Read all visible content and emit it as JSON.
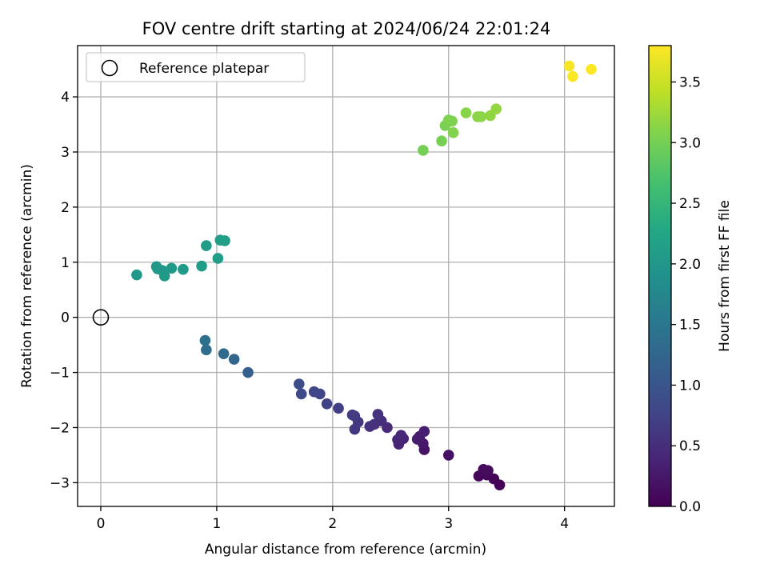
{
  "chart_data": {
    "type": "scatter",
    "title": "FOV centre drift starting at 2024/06/24 22:01:24",
    "xlabel": "Angular distance from reference (arcmin)",
    "ylabel": "Rotation from reference (arcmin)",
    "xlim": [
      -0.2,
      4.43
    ],
    "ylim": [
      -3.43,
      4.93
    ],
    "x_ticks": [
      0,
      1,
      2,
      3,
      4
    ],
    "x_tick_labels": [
      "0",
      "1",
      "2",
      "3",
      "4"
    ],
    "y_ticks": [
      -3,
      -2,
      -1,
      0,
      1,
      2,
      3,
      4
    ],
    "y_tick_labels": [
      "−3",
      "−2",
      "−1",
      "0",
      "1",
      "2",
      "3",
      "4"
    ],
    "grid": true,
    "legend": {
      "placement": "top-left",
      "entries": [
        "Reference platepar"
      ]
    },
    "reference_point": {
      "x": 0,
      "y": 0
    },
    "colorbar": {
      "label": "Hours from first FF file",
      "colormap": "viridis",
      "range": [
        0,
        3.8
      ],
      "ticks": [
        0.0,
        0.5,
        1.0,
        1.5,
        2.0,
        2.5,
        3.0,
        3.5
      ],
      "tick_labels": [
        "0.0",
        "0.5",
        "1.0",
        "1.5",
        "2.0",
        "2.5",
        "3.0",
        "3.5"
      ]
    },
    "points": [
      {
        "x": 3.44,
        "y": -3.04,
        "c": 0.02
      },
      {
        "x": 3.39,
        "y": -2.93,
        "c": 0.04
      },
      {
        "x": 3.26,
        "y": -2.88,
        "c": 0.06
      },
      {
        "x": 3.33,
        "y": -2.86,
        "c": 0.08
      },
      {
        "x": 3.3,
        "y": -2.76,
        "c": 0.1
      },
      {
        "x": 3.34,
        "y": -2.78,
        "c": 0.12
      },
      {
        "x": 3.0,
        "y": -2.5,
        "c": 0.16
      },
      {
        "x": 2.79,
        "y": -2.4,
        "c": 0.2
      },
      {
        "x": 2.78,
        "y": -2.29,
        "c": 0.24
      },
      {
        "x": 2.75,
        "y": -2.16,
        "c": 0.28
      },
      {
        "x": 2.73,
        "y": -2.21,
        "c": 0.3
      },
      {
        "x": 2.79,
        "y": -2.07,
        "c": 0.32
      },
      {
        "x": 2.61,
        "y": -2.2,
        "c": 0.36
      },
      {
        "x": 2.57,
        "y": -2.3,
        "c": 0.38
      },
      {
        "x": 2.56,
        "y": -2.22,
        "c": 0.4
      },
      {
        "x": 2.59,
        "y": -2.14,
        "c": 0.42
      },
      {
        "x": 2.47,
        "y": -2.0,
        "c": 0.46
      },
      {
        "x": 2.42,
        "y": -1.88,
        "c": 0.5
      },
      {
        "x": 2.36,
        "y": -1.94,
        "c": 0.52
      },
      {
        "x": 2.32,
        "y": -1.98,
        "c": 0.54
      },
      {
        "x": 2.39,
        "y": -1.76,
        "c": 0.56
      },
      {
        "x": 2.22,
        "y": -1.9,
        "c": 0.6
      },
      {
        "x": 2.19,
        "y": -2.03,
        "c": 0.62
      },
      {
        "x": 2.19,
        "y": -1.79,
        "c": 0.64
      },
      {
        "x": 2.17,
        "y": -1.77,
        "c": 0.66
      },
      {
        "x": 2.05,
        "y": -1.65,
        "c": 0.7
      },
      {
        "x": 1.95,
        "y": -1.57,
        "c": 0.74
      },
      {
        "x": 1.89,
        "y": -1.39,
        "c": 0.78
      },
      {
        "x": 1.84,
        "y": -1.35,
        "c": 0.8
      },
      {
        "x": 1.73,
        "y": -1.39,
        "c": 0.84
      },
      {
        "x": 1.71,
        "y": -1.21,
        "c": 0.88
      },
      {
        "x": 1.27,
        "y": -1.0,
        "c": 1.15
      },
      {
        "x": 1.15,
        "y": -0.76,
        "c": 1.25
      },
      {
        "x": 1.06,
        "y": -0.66,
        "c": 1.3
      },
      {
        "x": 0.91,
        "y": -0.59,
        "c": 1.35
      },
      {
        "x": 0.9,
        "y": -0.42,
        "c": 1.4
      },
      {
        "x": 0.31,
        "y": 0.77,
        "c": 2.0
      },
      {
        "x": 0.48,
        "y": 0.92,
        "c": 2.0
      },
      {
        "x": 0.49,
        "y": 0.88,
        "c": 2.02
      },
      {
        "x": 0.53,
        "y": 0.85,
        "c": 2.02
      },
      {
        "x": 0.55,
        "y": 0.75,
        "c": 2.04
      },
      {
        "x": 0.61,
        "y": 0.89,
        "c": 2.04
      },
      {
        "x": 0.71,
        "y": 0.87,
        "c": 2.06
      },
      {
        "x": 0.87,
        "y": 0.93,
        "c": 2.08
      },
      {
        "x": 0.91,
        "y": 1.3,
        "c": 2.08
      },
      {
        "x": 1.01,
        "y": 1.07,
        "c": 2.1
      },
      {
        "x": 1.03,
        "y": 1.4,
        "c": 2.1
      },
      {
        "x": 1.07,
        "y": 1.39,
        "c": 2.12
      },
      {
        "x": 2.78,
        "y": 3.03,
        "c": 3.0
      },
      {
        "x": 2.94,
        "y": 3.2,
        "c": 3.02
      },
      {
        "x": 2.97,
        "y": 3.48,
        "c": 3.04
      },
      {
        "x": 3.0,
        "y": 3.58,
        "c": 3.06
      },
      {
        "x": 3.03,
        "y": 3.56,
        "c": 3.06
      },
      {
        "x": 3.04,
        "y": 3.35,
        "c": 3.08
      },
      {
        "x": 3.15,
        "y": 3.71,
        "c": 3.12
      },
      {
        "x": 3.25,
        "y": 3.64,
        "c": 3.14
      },
      {
        "x": 3.28,
        "y": 3.64,
        "c": 3.14
      },
      {
        "x": 3.36,
        "y": 3.66,
        "c": 3.16
      },
      {
        "x": 3.41,
        "y": 3.78,
        "c": 3.18
      },
      {
        "x": 4.04,
        "y": 4.56,
        "c": 3.76
      },
      {
        "x": 4.07,
        "y": 4.37,
        "c": 3.78
      },
      {
        "x": 4.23,
        "y": 4.5,
        "c": 3.8
      }
    ]
  }
}
